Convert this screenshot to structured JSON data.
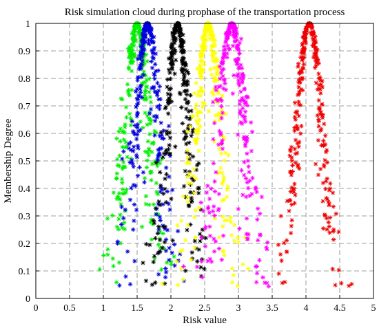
{
  "chart_data": {
    "type": "scatter",
    "title": "Risk simulation cloud during prophase of the transportation process",
    "xlabel": "Risk value",
    "ylabel": "Membership Degree",
    "xlim": [
      0,
      5
    ],
    "ylim": [
      0,
      1
    ],
    "x_ticks": [
      "0",
      "0.5",
      "1",
      "1.5",
      "2",
      "2.5",
      "3",
      "3.5",
      "4",
      "4.5",
      "5"
    ],
    "y_ticks": [
      "0",
      "0.1",
      "0.2",
      "0.3",
      "0.4",
      "0.5",
      "0.6",
      "0.7",
      "0.8",
      "0.9",
      "1"
    ],
    "grid": true,
    "marker": "asterisk",
    "series": [
      {
        "color": "#00ee00",
        "Ex": 1.5,
        "En": 0.18,
        "He": 0.05,
        "points": 300
      },
      {
        "color": "#0000dd",
        "Ex": 1.65,
        "En": 0.17,
        "He": 0.055,
        "points": 300
      },
      {
        "color": "#000000",
        "Ex": 2.1,
        "En": 0.16,
        "He": 0.05,
        "points": 300
      },
      {
        "color": "#ffff00",
        "Ex": 2.55,
        "En": 0.18,
        "He": 0.055,
        "points": 300
      },
      {
        "color": "#ff00ff",
        "Ex": 2.9,
        "En": 0.2,
        "He": 0.06,
        "points": 300
      },
      {
        "color": "#ee0000",
        "Ex": 4.05,
        "En": 0.2,
        "He": 0.04,
        "points": 300
      }
    ]
  }
}
